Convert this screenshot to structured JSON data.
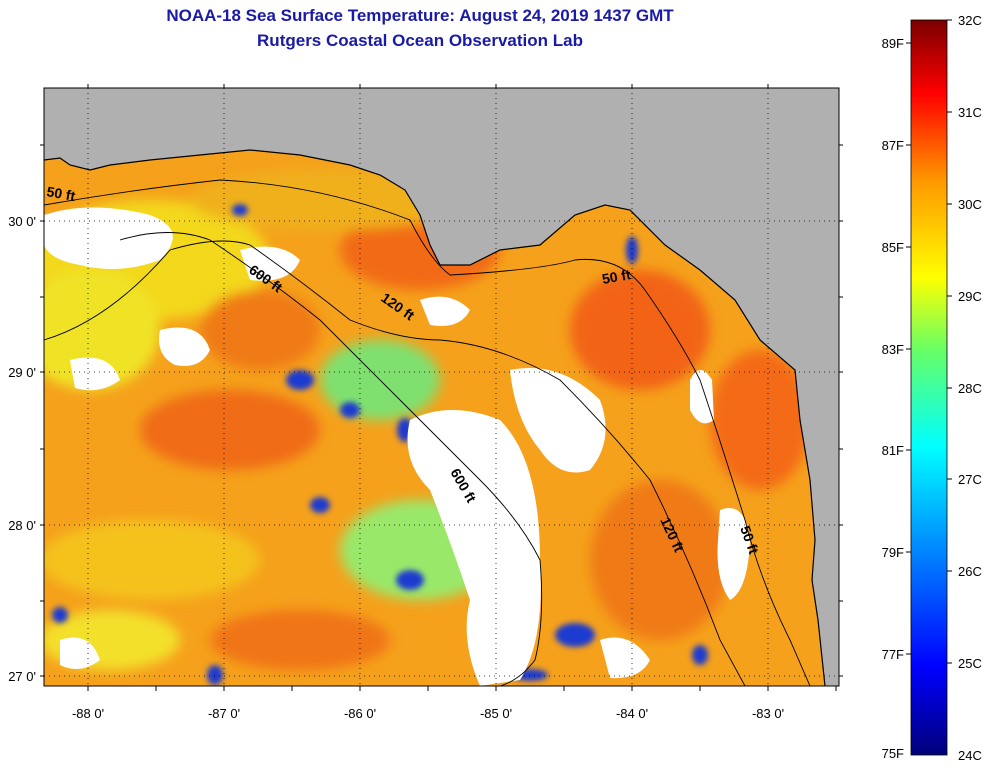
{
  "title_line1": "NOAA-18 Sea Surface Temperature:  August 24, 2019 1437 GMT",
  "title_line2": "Rutgers Coastal Ocean Observation Lab",
  "map": {
    "lon_labels": [
      "-88 0'",
      "-87 0'",
      "-86 0'",
      "-85 0'",
      "-84 0'",
      "-83 0'"
    ],
    "lat_labels": [
      "30 0'",
      "29 0'",
      "28 0'",
      "27 0'"
    ],
    "contour_labels": [
      "50 ft",
      "600 ft",
      "120 ft",
      "50 ft",
      "600 ft",
      "120 ft",
      "50 ft"
    ],
    "colors": {
      "land": "#b0b0b0",
      "cloud": "#ffffff",
      "grid": "#000000"
    }
  },
  "colorbar": {
    "fahrenheit_labels": [
      "89F",
      "87F",
      "85F",
      "83F",
      "81F",
      "79F",
      "77F",
      "75F"
    ],
    "celsius_labels": [
      "32C",
      "31C",
      "30C",
      "29C",
      "28C",
      "27C",
      "26C",
      "25C",
      "24C"
    ]
  }
}
